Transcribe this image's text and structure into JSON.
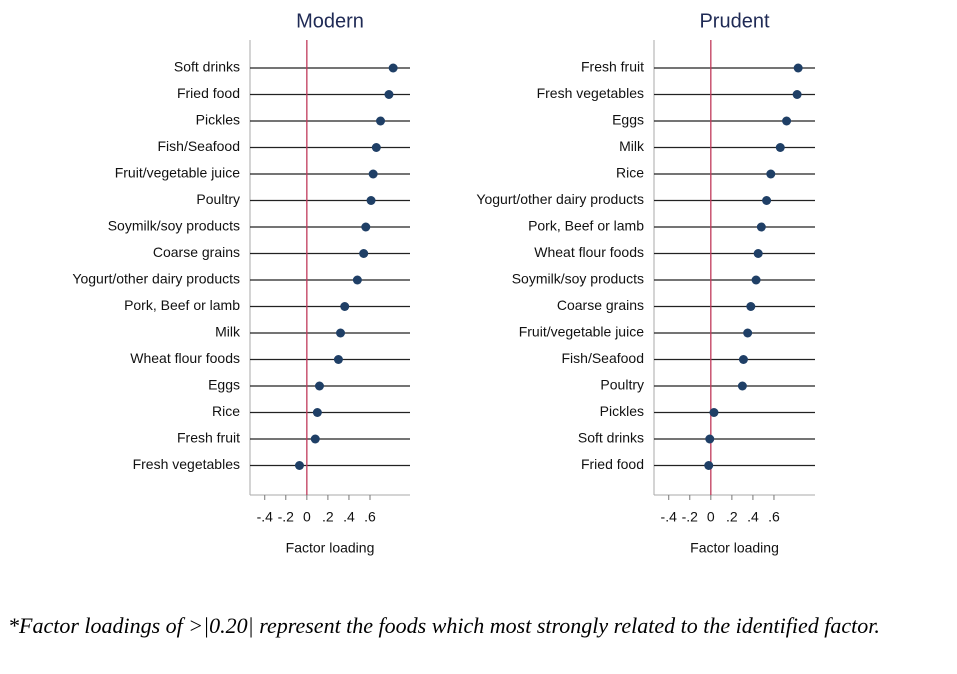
{
  "chart_data": [
    {
      "type": "dot",
      "title": "Modern",
      "categories": [
        "Soft drinks",
        "Fried food",
        "Pickles",
        "Fish/Seafood",
        "Fruit/vegetable juice",
        "Poultry",
        "Soymilk/soy products",
        "Coarse grains",
        "Yogurt/other dairy products",
        "Pork, Beef or lamb",
        "Milk",
        "Wheat flour foods",
        "Eggs",
        "Rice",
        "Fresh fruit",
        "Fresh vegetables"
      ],
      "values": [
        0.82,
        0.78,
        0.7,
        0.66,
        0.63,
        0.61,
        0.56,
        0.54,
        0.48,
        0.36,
        0.32,
        0.3,
        0.12,
        0.1,
        0.08,
        -0.07
      ],
      "color": "#1f3f66",
      "xlim": [
        -0.54,
        0.98
      ],
      "xticks": [
        {
          "value": -0.4,
          "label": "-.4"
        },
        {
          "value": -0.2,
          "label": "-.2"
        },
        0,
        {
          "value": 0.2,
          "label": ".2"
        },
        {
          "value": 0.4,
          "label": ".4"
        },
        {
          "value": 0.6,
          "label": ".6"
        }
      ],
      "xlabel": "Factor loading"
    },
    {
      "type": "dot",
      "title": "Prudent",
      "categories": [
        "Fresh fruit",
        "Fresh vegetables",
        "Eggs",
        "Milk",
        "Rice",
        "Yogurt/other dairy products",
        "Pork, Beef or lamb",
        "Wheat flour foods",
        "Soymilk/soy products",
        "Coarse grains",
        "Fruit/vegetable juice",
        "Fish/Seafood",
        "Poultry",
        "Pickles",
        "Soft drinks",
        "Fried food"
      ],
      "values": [
        0.83,
        0.82,
        0.72,
        0.66,
        0.57,
        0.53,
        0.48,
        0.45,
        0.43,
        0.38,
        0.35,
        0.31,
        0.3,
        0.03,
        -0.01,
        -0.02
      ],
      "color": "#1f3f66",
      "xlim": [
        -0.54,
        0.99
      ],
      "xticks": [
        {
          "value": -0.4,
          "label": "-.4"
        },
        {
          "value": -0.2,
          "label": "-.2"
        },
        0,
        {
          "value": 0.2,
          "label": ".2"
        },
        {
          "value": 0.4,
          "label": ".4"
        },
        {
          "value": 0.6,
          "label": ".6"
        }
      ],
      "xlabel": "Factor loading"
    }
  ],
  "footnote": "*Factor loadings of >|0.20| represent the foods which most strongly related to the identified factor."
}
